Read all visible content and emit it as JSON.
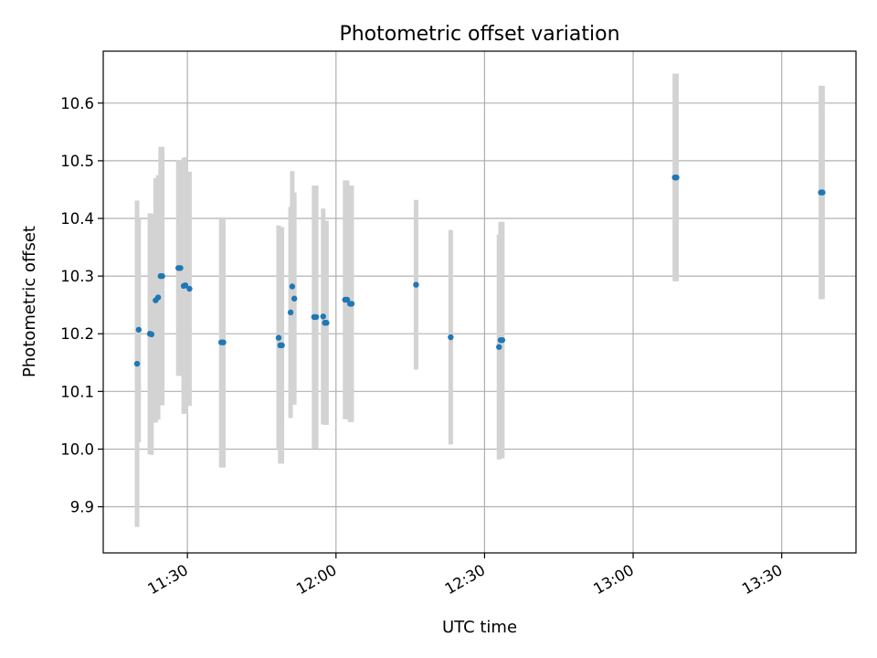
{
  "chart_data": {
    "type": "scatter",
    "title": "Photometric offset variation",
    "xlabel": "UTC time",
    "ylabel": "Photometric offset",
    "xlim": [
      "11:13",
      "13:45"
    ],
    "ylim": [
      9.82,
      10.69
    ],
    "grid": true,
    "x_ticks": [
      "11:30",
      "12:00",
      "12:30",
      "13:00",
      "13:30"
    ],
    "y_ticks": [
      "9.9",
      "10.0",
      "10.1",
      "10.2",
      "10.3",
      "10.4",
      "10.5",
      "10.6"
    ],
    "marker_color": "#1f77b4",
    "errorbar_color": "#d3d3d3",
    "series": [
      {
        "points": [
          {
            "x": "11:19:50",
            "y": 10.148,
            "err": 0.283
          },
          {
            "x": "11:20:10",
            "y": 10.207,
            "err": 0.195
          },
          {
            "x": "11:22:25",
            "y": 10.2,
            "err": 0.209
          },
          {
            "x": "11:22:45",
            "y": 10.199,
            "err": 0.209
          },
          {
            "x": "11:23:35",
            "y": 10.258,
            "err": 0.212
          },
          {
            "x": "11:24:05",
            "y": 10.263,
            "err": 0.212
          },
          {
            "x": "11:24:35",
            "y": 10.3,
            "err": 0.224
          },
          {
            "x": "11:24:55",
            "y": 10.3,
            "err": 0.224
          },
          {
            "x": "11:28:10",
            "y": 10.314,
            "err": 0.187
          },
          {
            "x": "11:28:35",
            "y": 10.314,
            "err": 0.187
          },
          {
            "x": "11:29:15",
            "y": 10.283,
            "err": 0.222
          },
          {
            "x": "11:29:35",
            "y": 10.284,
            "err": 0.222
          },
          {
            "x": "11:30:25",
            "y": 10.278,
            "err": 0.203
          },
          {
            "x": "11:36:50",
            "y": 10.185,
            "err": 0.217
          },
          {
            "x": "11:37:15",
            "y": 10.185,
            "err": 0.217
          },
          {
            "x": "11:48:25",
            "y": 10.193,
            "err": 0.195
          },
          {
            "x": "11:48:45",
            "y": 10.18,
            "err": 0.205
          },
          {
            "x": "11:49:05",
            "y": 10.18,
            "err": 0.205
          },
          {
            "x": "11:50:50",
            "y": 10.237,
            "err": 0.183
          },
          {
            "x": "11:51:10",
            "y": 10.282,
            "err": 0.2
          },
          {
            "x": "11:51:35",
            "y": 10.261,
            "err": 0.184
          },
          {
            "x": "11:55:35",
            "y": 10.229,
            "err": 0.228
          },
          {
            "x": "11:56:00",
            "y": 10.229,
            "err": 0.228
          },
          {
            "x": "11:57:25",
            "y": 10.23,
            "err": 0.187
          },
          {
            "x": "11:57:45",
            "y": 10.219,
            "err": 0.177
          },
          {
            "x": "11:58:05",
            "y": 10.219,
            "err": 0.177
          },
          {
            "x": "12:01:50",
            "y": 10.259,
            "err": 0.207
          },
          {
            "x": "12:02:15",
            "y": 10.259,
            "err": 0.207
          },
          {
            "x": "12:02:50",
            "y": 10.252,
            "err": 0.205
          },
          {
            "x": "12:03:10",
            "y": 10.252,
            "err": 0.205
          },
          {
            "x": "12:16:10",
            "y": 10.285,
            "err": 0.147
          },
          {
            "x": "12:23:10",
            "y": 10.194,
            "err": 0.186
          },
          {
            "x": "12:32:55",
            "y": 10.177,
            "err": 0.195
          },
          {
            "x": "12:33:15",
            "y": 10.189,
            "err": 0.205
          },
          {
            "x": "12:33:35",
            "y": 10.189,
            "err": 0.205
          },
          {
            "x": "13:08:25",
            "y": 10.471,
            "err": 0.18
          },
          {
            "x": "13:08:45",
            "y": 10.471,
            "err": 0.18
          },
          {
            "x": "13:37:55",
            "y": 10.445,
            "err": 0.185
          },
          {
            "x": "13:38:15",
            "y": 10.445,
            "err": 0.185
          }
        ]
      }
    ]
  }
}
